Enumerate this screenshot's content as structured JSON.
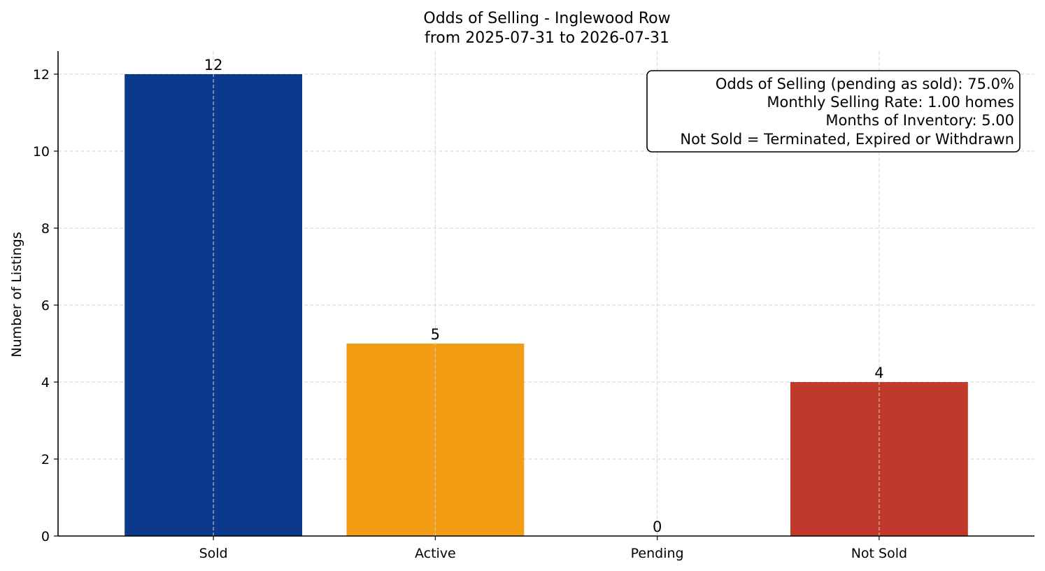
{
  "chart_data": {
    "type": "bar",
    "title": "Odds of Selling - Inglewood Row",
    "subtitle": "from 2025-07-31 to 2026-07-31",
    "xlabel": "",
    "ylabel": "Number of Listings",
    "categories": [
      "Sold",
      "Active",
      "Pending",
      "Not Sold"
    ],
    "values": [
      12,
      5,
      0,
      4
    ],
    "value_labels": [
      "12",
      "5",
      "0",
      "4"
    ],
    "colors": [
      "#0b3a8c",
      "#f29d14",
      "#1f77b4",
      "#c0392b"
    ],
    "ylim": [
      0,
      12.6
    ],
    "yticks": [
      0,
      2,
      4,
      6,
      8,
      10,
      12
    ],
    "ytick_labels": [
      "0",
      "2",
      "4",
      "6",
      "8",
      "10",
      "12"
    ],
    "grid": true,
    "annotation": {
      "position": "top-right",
      "lines": [
        "Odds of Selling (pending as sold): 75.0%",
        "Monthly Selling Rate: 1.00 homes",
        "Months of Inventory: 5.00",
        "Not Sold = Terminated, Expired or Withdrawn"
      ]
    }
  }
}
